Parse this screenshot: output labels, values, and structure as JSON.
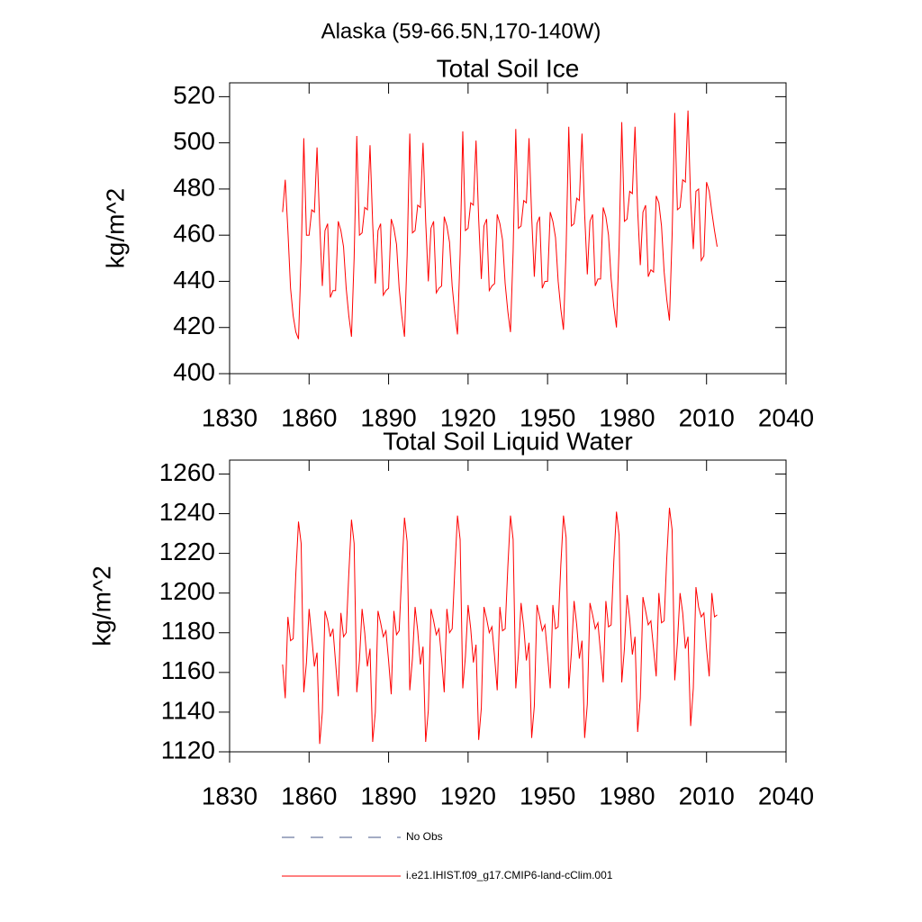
{
  "title": "Alaska (59-66.5N,170-140W)",
  "legend": [
    {
      "name": "No Obs",
      "color": "#4a5a8a",
      "dashed": true
    },
    {
      "name": "i.e21.IHIST.f09_g17.CMIP6-land-cClim.001",
      "color": "#ff0000",
      "dashed": false
    }
  ],
  "chart_data": [
    {
      "type": "line",
      "title": "Total Soil Ice",
      "ylabel": "kg/m^2",
      "xlim": [
        1830,
        2040
      ],
      "xticks": [
        1830,
        1860,
        1890,
        1920,
        1950,
        1980,
        2010,
        2040
      ],
      "ylim": [
        400,
        526
      ],
      "yticks": [
        400,
        420,
        440,
        460,
        480,
        500,
        520
      ],
      "x": [
        1850,
        1851,
        1852,
        1853,
        1854,
        1855,
        1856,
        1857,
        1858,
        1859,
        1860,
        1861,
        1862,
        1863,
        1864,
        1865,
        1866,
        1867,
        1868,
        1869,
        1870,
        1871,
        1872,
        1873,
        1874,
        1875,
        1876,
        1877,
        1878,
        1879,
        1880,
        1881,
        1882,
        1883,
        1884,
        1885,
        1886,
        1887,
        1888,
        1889,
        1890,
        1891,
        1892,
        1893,
        1894,
        1895,
        1896,
        1897,
        1898,
        1899,
        1900,
        1901,
        1902,
        1903,
        1904,
        1905,
        1906,
        1907,
        1908,
        1909,
        1910,
        1911,
        1912,
        1913,
        1914,
        1915,
        1916,
        1917,
        1918,
        1919,
        1920,
        1921,
        1922,
        1923,
        1924,
        1925,
        1926,
        1927,
        1928,
        1929,
        1930,
        1931,
        1932,
        1933,
        1934,
        1935,
        1936,
        1937,
        1938,
        1939,
        1940,
        1941,
        1942,
        1943,
        1944,
        1945,
        1946,
        1947,
        1948,
        1949,
        1950,
        1951,
        1952,
        1953,
        1954,
        1955,
        1956,
        1957,
        1958,
        1959,
        1960,
        1961,
        1962,
        1963,
        1964,
        1965,
        1966,
        1967,
        1968,
        1969,
        1970,
        1971,
        1972,
        1973,
        1974,
        1975,
        1976,
        1977,
        1978,
        1979,
        1980,
        1981,
        1982,
        1983,
        1984,
        1985,
        1986,
        1987,
        1988,
        1989,
        1990,
        1991,
        1992,
        1993,
        1994,
        1995,
        1996,
        1997,
        1998,
        1999,
        2000,
        2001,
        2002,
        2003,
        2004,
        2005,
        2006,
        2007,
        2008,
        2009,
        2010,
        2011,
        2012,
        2013,
        2014
      ],
      "series": [
        {
          "name": "i.e21.IHIST.f09_g17.CMIP6-land-cClim.001",
          "color": "#ff0000",
          "values": [
            470,
            484,
            462,
            437,
            425,
            418,
            415,
            450,
            502,
            460,
            460,
            471,
            470,
            498,
            465,
            438,
            462,
            465,
            433,
            436,
            436,
            466,
            462,
            455,
            437,
            425,
            416,
            450,
            503,
            460,
            461,
            472,
            471,
            499,
            465,
            439,
            462,
            465,
            434,
            436,
            437,
            467,
            463,
            456,
            437,
            425,
            416,
            451,
            504,
            461,
            462,
            473,
            472,
            500,
            466,
            440,
            463,
            466,
            435,
            437,
            438,
            468,
            464,
            457,
            438,
            426,
            417,
            452,
            505,
            462,
            463,
            474,
            473,
            501,
            467,
            441,
            464,
            467,
            436,
            438,
            439,
            469,
            465,
            458,
            439,
            427,
            418,
            453,
            506,
            463,
            464,
            475,
            474,
            502,
            468,
            442,
            465,
            468,
            437,
            440,
            440,
            470,
            466,
            459,
            440,
            428,
            419,
            454,
            507,
            464,
            465,
            476,
            475,
            504,
            469,
            443,
            466,
            469,
            438,
            441,
            441,
            472,
            468,
            460,
            441,
            429,
            420,
            455,
            509,
            466,
            467,
            479,
            478,
            507,
            471,
            447,
            470,
            473,
            442,
            445,
            444,
            477,
            474,
            464,
            444,
            432,
            423,
            460,
            513,
            471,
            472,
            484,
            483,
            514,
            475,
            454,
            479,
            480,
            449,
            451,
            483,
            479,
            470,
            462,
            455
          ]
        }
      ]
    },
    {
      "type": "line",
      "title": "Total Soil Liquid Water",
      "ylabel": "kg/m^2",
      "xlim": [
        1830,
        2040
      ],
      "xticks": [
        1830,
        1860,
        1890,
        1920,
        1950,
        1980,
        2010,
        2040
      ],
      "ylim": [
        1120,
        1267
      ],
      "yticks": [
        1120,
        1140,
        1160,
        1180,
        1200,
        1220,
        1240,
        1260
      ],
      "x": [
        1850,
        1851,
        1852,
        1853,
        1854,
        1855,
        1856,
        1857,
        1858,
        1859,
        1860,
        1861,
        1862,
        1863,
        1864,
        1865,
        1866,
        1867,
        1868,
        1869,
        1870,
        1871,
        1872,
        1873,
        1874,
        1875,
        1876,
        1877,
        1878,
        1879,
        1880,
        1881,
        1882,
        1883,
        1884,
        1885,
        1886,
        1887,
        1888,
        1889,
        1890,
        1891,
        1892,
        1893,
        1894,
        1895,
        1896,
        1897,
        1898,
        1899,
        1900,
        1901,
        1902,
        1903,
        1904,
        1905,
        1906,
        1907,
        1908,
        1909,
        1910,
        1911,
        1912,
        1913,
        1914,
        1915,
        1916,
        1917,
        1918,
        1919,
        1920,
        1921,
        1922,
        1923,
        1924,
        1925,
        1926,
        1927,
        1928,
        1929,
        1930,
        1931,
        1932,
        1933,
        1934,
        1935,
        1936,
        1937,
        1938,
        1939,
        1940,
        1941,
        1942,
        1943,
        1944,
        1945,
        1946,
        1947,
        1948,
        1949,
        1950,
        1951,
        1952,
        1953,
        1954,
        1955,
        1956,
        1957,
        1958,
        1959,
        1960,
        1961,
        1962,
        1963,
        1964,
        1965,
        1966,
        1967,
        1968,
        1969,
        1970,
        1971,
        1972,
        1973,
        1974,
        1975,
        1976,
        1977,
        1978,
        1979,
        1980,
        1981,
        1982,
        1983,
        1984,
        1985,
        1986,
        1987,
        1988,
        1989,
        1990,
        1991,
        1992,
        1993,
        1994,
        1995,
        1996,
        1997,
        1998,
        1999,
        2000,
        2001,
        2002,
        2003,
        2004,
        2005,
        2006,
        2007,
        2008,
        2009,
        2010,
        2011,
        2012,
        2013,
        2014
      ],
      "series": [
        {
          "name": "i.e21.IHIST.f09_g17.CMIP6-land-cClim.001",
          "color": "#ff0000",
          "values": [
            1164,
            1147,
            1188,
            1176,
            1177,
            1210,
            1236,
            1225,
            1150,
            1165,
            1192,
            1178,
            1163,
            1170,
            1124,
            1140,
            1191,
            1186,
            1178,
            1182,
            1165,
            1148,
            1190,
            1178,
            1180,
            1210,
            1237,
            1225,
            1150,
            1166,
            1192,
            1180,
            1163,
            1172,
            1125,
            1140,
            1191,
            1185,
            1178,
            1181,
            1166,
            1149,
            1191,
            1179,
            1181,
            1211,
            1238,
            1226,
            1151,
            1167,
            1193,
            1181,
            1164,
            1173,
            1125,
            1141,
            1192,
            1186,
            1179,
            1182,
            1167,
            1150,
            1192,
            1180,
            1182,
            1212,
            1239,
            1227,
            1152,
            1168,
            1194,
            1182,
            1165,
            1174,
            1126,
            1142,
            1193,
            1187,
            1180,
            1183,
            1168,
            1151,
            1193,
            1181,
            1182,
            1213,
            1239,
            1227,
            1152,
            1169,
            1195,
            1183,
            1166,
            1175,
            1127,
            1143,
            1194,
            1188,
            1181,
            1184,
            1169,
            1152,
            1194,
            1182,
            1183,
            1214,
            1239,
            1228,
            1152,
            1170,
            1196,
            1184,
            1167,
            1176,
            1127,
            1144,
            1195,
            1189,
            1182,
            1185,
            1170,
            1155,
            1196,
            1183,
            1184,
            1216,
            1241,
            1229,
            1155,
            1172,
            1199,
            1187,
            1169,
            1178,
            1130,
            1147,
            1198,
            1191,
            1184,
            1186,
            1172,
            1158,
            1200,
            1185,
            1186,
            1218,
            1243,
            1232,
            1156,
            1175,
            1200,
            1190,
            1172,
            1178,
            1133,
            1152,
            1203,
            1193,
            1188,
            1190,
            1172,
            1158,
            1200,
            1188,
            1189
          ]
        }
      ]
    }
  ]
}
